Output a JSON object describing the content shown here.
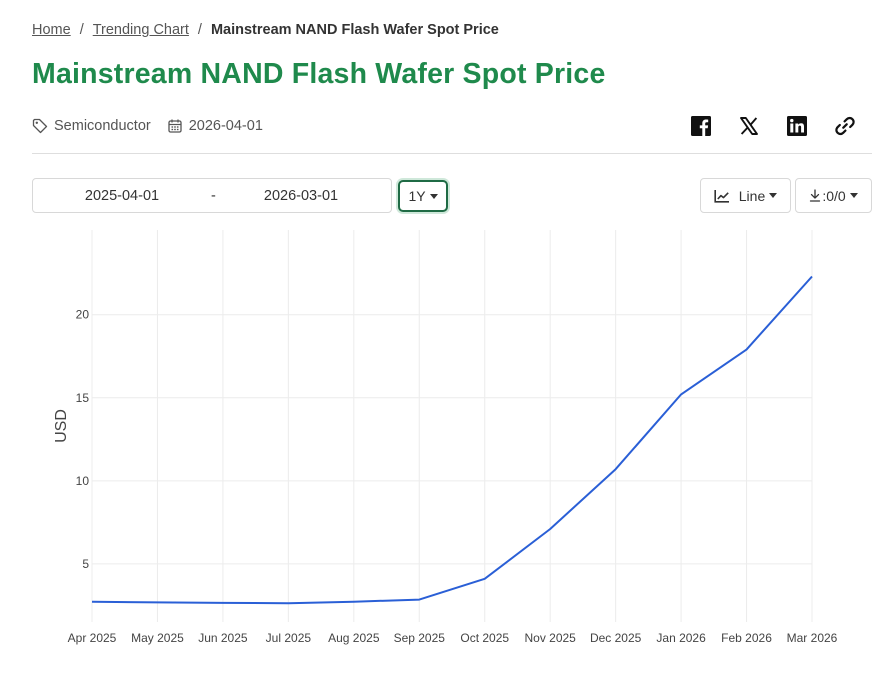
{
  "breadcrumb": {
    "home": "Home",
    "trending": "Trending Chart",
    "current": "Mainstream NAND Flash Wafer Spot Price",
    "separator": "/"
  },
  "page": {
    "title": "Mainstream NAND Flash Wafer Spot Price",
    "category": "Semiconductor",
    "date": "2026-04-01"
  },
  "share": {
    "icons": [
      "facebook-icon",
      "x-icon",
      "linkedin-icon",
      "link-icon"
    ]
  },
  "controls": {
    "date_from": "2025-04-01",
    "date_separator": "-",
    "date_to": "2026-03-01",
    "range_label": "1Y",
    "chart_type_label": "Line",
    "download_label": ":0/0"
  },
  "colors": {
    "title": "#1f8a4c",
    "line": "#2a5fd6",
    "range_border": "#1f6b45"
  },
  "chart_data": {
    "type": "line",
    "title": "",
    "xlabel": "",
    "ylabel": "USD",
    "x": [
      "Apr 2025",
      "May 2025",
      "Jun 2025",
      "Jul 2025",
      "Aug 2025",
      "Sep 2025",
      "Oct 2025",
      "Nov 2025",
      "Dec 2025",
      "Jan 2026",
      "Feb 2026",
      "Mar 2026"
    ],
    "series": [
      {
        "values": [
          2.72,
          2.68,
          2.65,
          2.63,
          2.72,
          2.85,
          4.1,
          7.1,
          10.7,
          15.2,
          17.9,
          22.3
        ]
      }
    ],
    "yticks": [
      5,
      10,
      15,
      20
    ],
    "ylim": [
      1.5,
      25.1
    ],
    "grid": true,
    "legend": "none"
  }
}
